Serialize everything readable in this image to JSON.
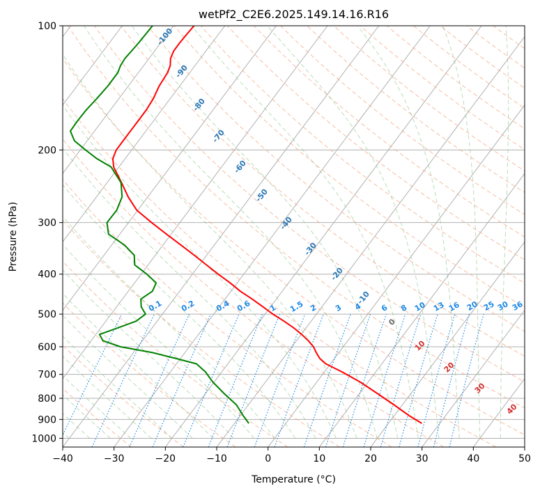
{
  "chart_data": {
    "type": "skew-t log-p sounding",
    "title": "wetPf2_C2E6.2025.149.14.16.R16",
    "xlabel": "Temperature (°C)",
    "ylabel": "Pressure (hPa)",
    "xlim": [
      -40,
      50
    ],
    "ylim": [
      1050,
      100
    ],
    "y_scale": "log",
    "x_ticks": [
      -40,
      -30,
      -20,
      -10,
      0,
      10,
      20,
      30,
      40,
      50
    ],
    "x_tick_labels": [
      "−40",
      "−30",
      "−20",
      "−10",
      "0",
      "10",
      "20",
      "30",
      "40",
      "50"
    ],
    "y_ticks": [
      100,
      200,
      300,
      400,
      500,
      600,
      700,
      800,
      900,
      1000
    ],
    "y_tick_labels": [
      "100",
      "200",
      "300",
      "400",
      "500",
      "600",
      "700",
      "800",
      "900",
      "1000"
    ],
    "grid": true,
    "temperature_profile": {
      "color": "#ff0000",
      "pressure": [
        920,
        880,
        830,
        780,
        730,
        690,
        660,
        640,
        620,
        600,
        580,
        560,
        540,
        520,
        500,
        480,
        460,
        440,
        420,
        400,
        380,
        360,
        340,
        320,
        300,
        280,
        260,
        240,
        220,
        210,
        200,
        190,
        180,
        170,
        160,
        150,
        140,
        130,
        125,
        120,
        115,
        110,
        105,
        100
      ],
      "temperature": [
        26.5,
        22.8,
        18.4,
        13.6,
        8.4,
        3.4,
        -0.9,
        -2.9,
        -4.4,
        -5.8,
        -7.7,
        -9.9,
        -12.4,
        -15.3,
        -18.5,
        -21.5,
        -24.7,
        -28.2,
        -31.4,
        -35.0,
        -38.6,
        -42.4,
        -46.5,
        -50.9,
        -55.5,
        -60.2,
        -63.8,
        -67.2,
        -71.0,
        -72.4,
        -73.0,
        -73.0,
        -73.0,
        -73.0,
        -73.0,
        -73.3,
        -74.0,
        -74.3,
        -74.8,
        -75.8,
        -76.3,
        -76.3,
        -76.2,
        -76.0
      ]
    },
    "dewpoint_profile": {
      "color": "#008000",
      "pressure": [
        920,
        880,
        830,
        780,
        730,
        690,
        660,
        640,
        620,
        600,
        580,
        560,
        540,
        520,
        500,
        480,
        460,
        440,
        420,
        400,
        380,
        360,
        340,
        320,
        300,
        280,
        260,
        240,
        220,
        210,
        200,
        190,
        180,
        170,
        160,
        150,
        140,
        130,
        125,
        120,
        115,
        110,
        105,
        100
      ],
      "temperature": [
        -7.2,
        -9.5,
        -12.3,
        -16.3,
        -20.3,
        -23.2,
        -26.1,
        -31.0,
        -36.3,
        -43.4,
        -47.7,
        -49.3,
        -46.7,
        -44.1,
        -43.3,
        -45.2,
        -46.4,
        -45.3,
        -45.8,
        -48.9,
        -52.6,
        -54.1,
        -57.5,
        -62.2,
        -64.2,
        -64.1,
        -65.0,
        -67.3,
        -71.5,
        -75.5,
        -79.0,
        -82.5,
        -84.7,
        -84.8,
        -84.7,
        -84.3,
        -84.0,
        -84.0,
        -84.5,
        -84.7,
        -84.5,
        -84.3,
        -84.2,
        -84.1
      ]
    },
    "dry_adiabat_labels": [
      "-100",
      "-90",
      "-80",
      "-70",
      "-60",
      "-50",
      "-40",
      "-30",
      "-20",
      "-10"
    ],
    "moist_adiabat_labels": [
      "0",
      "10",
      "20",
      "30",
      "40"
    ],
    "mixing_ratio_labels": [
      "0.1",
      "0.2",
      "0.4",
      "0.6",
      "1",
      "1.5",
      "2",
      "3",
      "4",
      "6",
      "8",
      "10",
      "13",
      "16",
      "20",
      "25",
      "30",
      "36"
    ]
  }
}
